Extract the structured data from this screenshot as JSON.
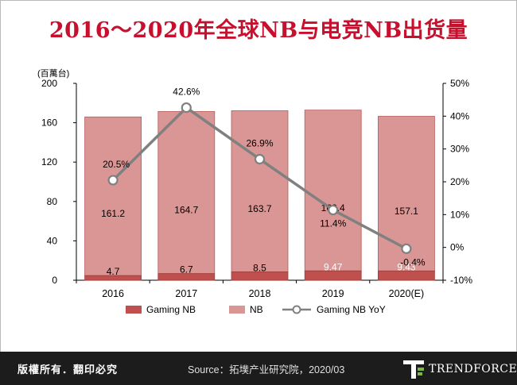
{
  "title": "2016～2020年全球NB与电竞NB出货量",
  "footer": {
    "rights": "版權所有．翻印必究",
    "source": "Source：拓墣产业研究院，2020/03",
    "logo": "TRENDFORCE"
  },
  "chart_data": {
    "type": "bar",
    "stacked": true,
    "categories": [
      "2016",
      "2017",
      "2018",
      "2019",
      "2020(E)"
    ],
    "unit_label": "(百萬台)",
    "y_left": {
      "min": 0,
      "max": 200,
      "ticks": [
        "0",
        "40",
        "80",
        "120",
        "160",
        "200"
      ],
      "tick_values": [
        0,
        40,
        80,
        120,
        160,
        200
      ]
    },
    "y_right": {
      "min": -10,
      "max": 50,
      "ticks": [
        "-10%",
        "0%",
        "10%",
        "20%",
        "30%",
        "40%",
        "50%"
      ],
      "tick_values": [
        -10,
        0,
        10,
        20,
        30,
        40,
        50
      ]
    },
    "series": [
      {
        "name": "Gaming NB",
        "values": [
          4.7,
          6.7,
          8.5,
          9.47,
          9.43
        ],
        "labels": [
          "4.7",
          "6.7",
          "8.5",
          "9.47",
          "9.43"
        ],
        "color": "#c0504d"
      },
      {
        "name": "NB",
        "values": [
          161.2,
          164.7,
          163.7,
          163.4,
          157.1
        ],
        "labels": [
          "161.2",
          "164.7",
          "163.7",
          "163.4",
          "157.1"
        ],
        "color": "#d99694"
      },
      {
        "name": "Gaming NB YoY",
        "axis": "right",
        "values": [
          20.5,
          42.6,
          26.9,
          11.4,
          -0.4
        ],
        "labels": [
          "20.5%",
          "42.6%",
          "26.9%",
          "11.4%",
          "-0.4%"
        ],
        "color": "#808080"
      }
    ],
    "grid": false,
    "legend_position": "bottom"
  }
}
